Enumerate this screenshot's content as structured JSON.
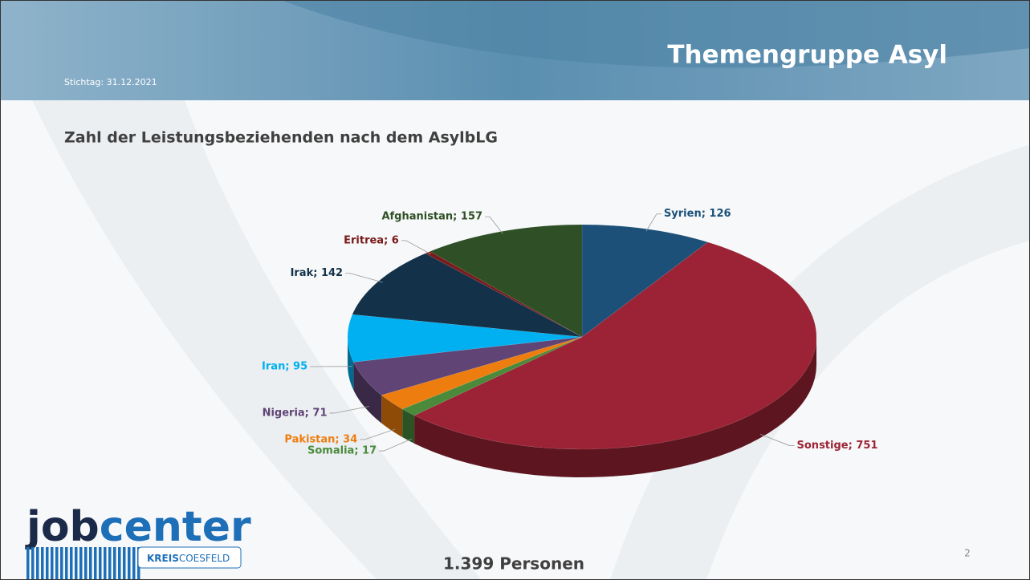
{
  "header": {
    "title": "Themengruppe Asyl",
    "date": "Stichtag: 31.12.2021"
  },
  "chart_data": {
    "type": "pie3d",
    "title": "Zahl der Leistungsbeziehenden nach dem AsylbLG",
    "values": [
      126,
      751,
      17,
      34,
      71,
      95,
      142,
      6,
      157
    ],
    "value_labels": [
      "Syrien; 126",
      "Sonstige; 751",
      "Somalia; 17",
      "Pakistan; 34",
      "Nigeria; 71",
      "Iran; 95",
      "Irak; 142",
      "Eritrea; 6",
      "Afghanistan; 157"
    ],
    "colors": [
      "#1c5078",
      "#9b2335",
      "#4a8a3a",
      "#ed7d0e",
      "#5f4475",
      "#00b0f0",
      "#13324a",
      "#7a1a1a",
      "#2f4f26"
    ],
    "total": "1.399 Personen"
  },
  "footer": {
    "page": "2",
    "logo": [
      "job",
      "center"
    ],
    "logo_sub": [
      "KREIS",
      "COESFELD"
    ]
  }
}
